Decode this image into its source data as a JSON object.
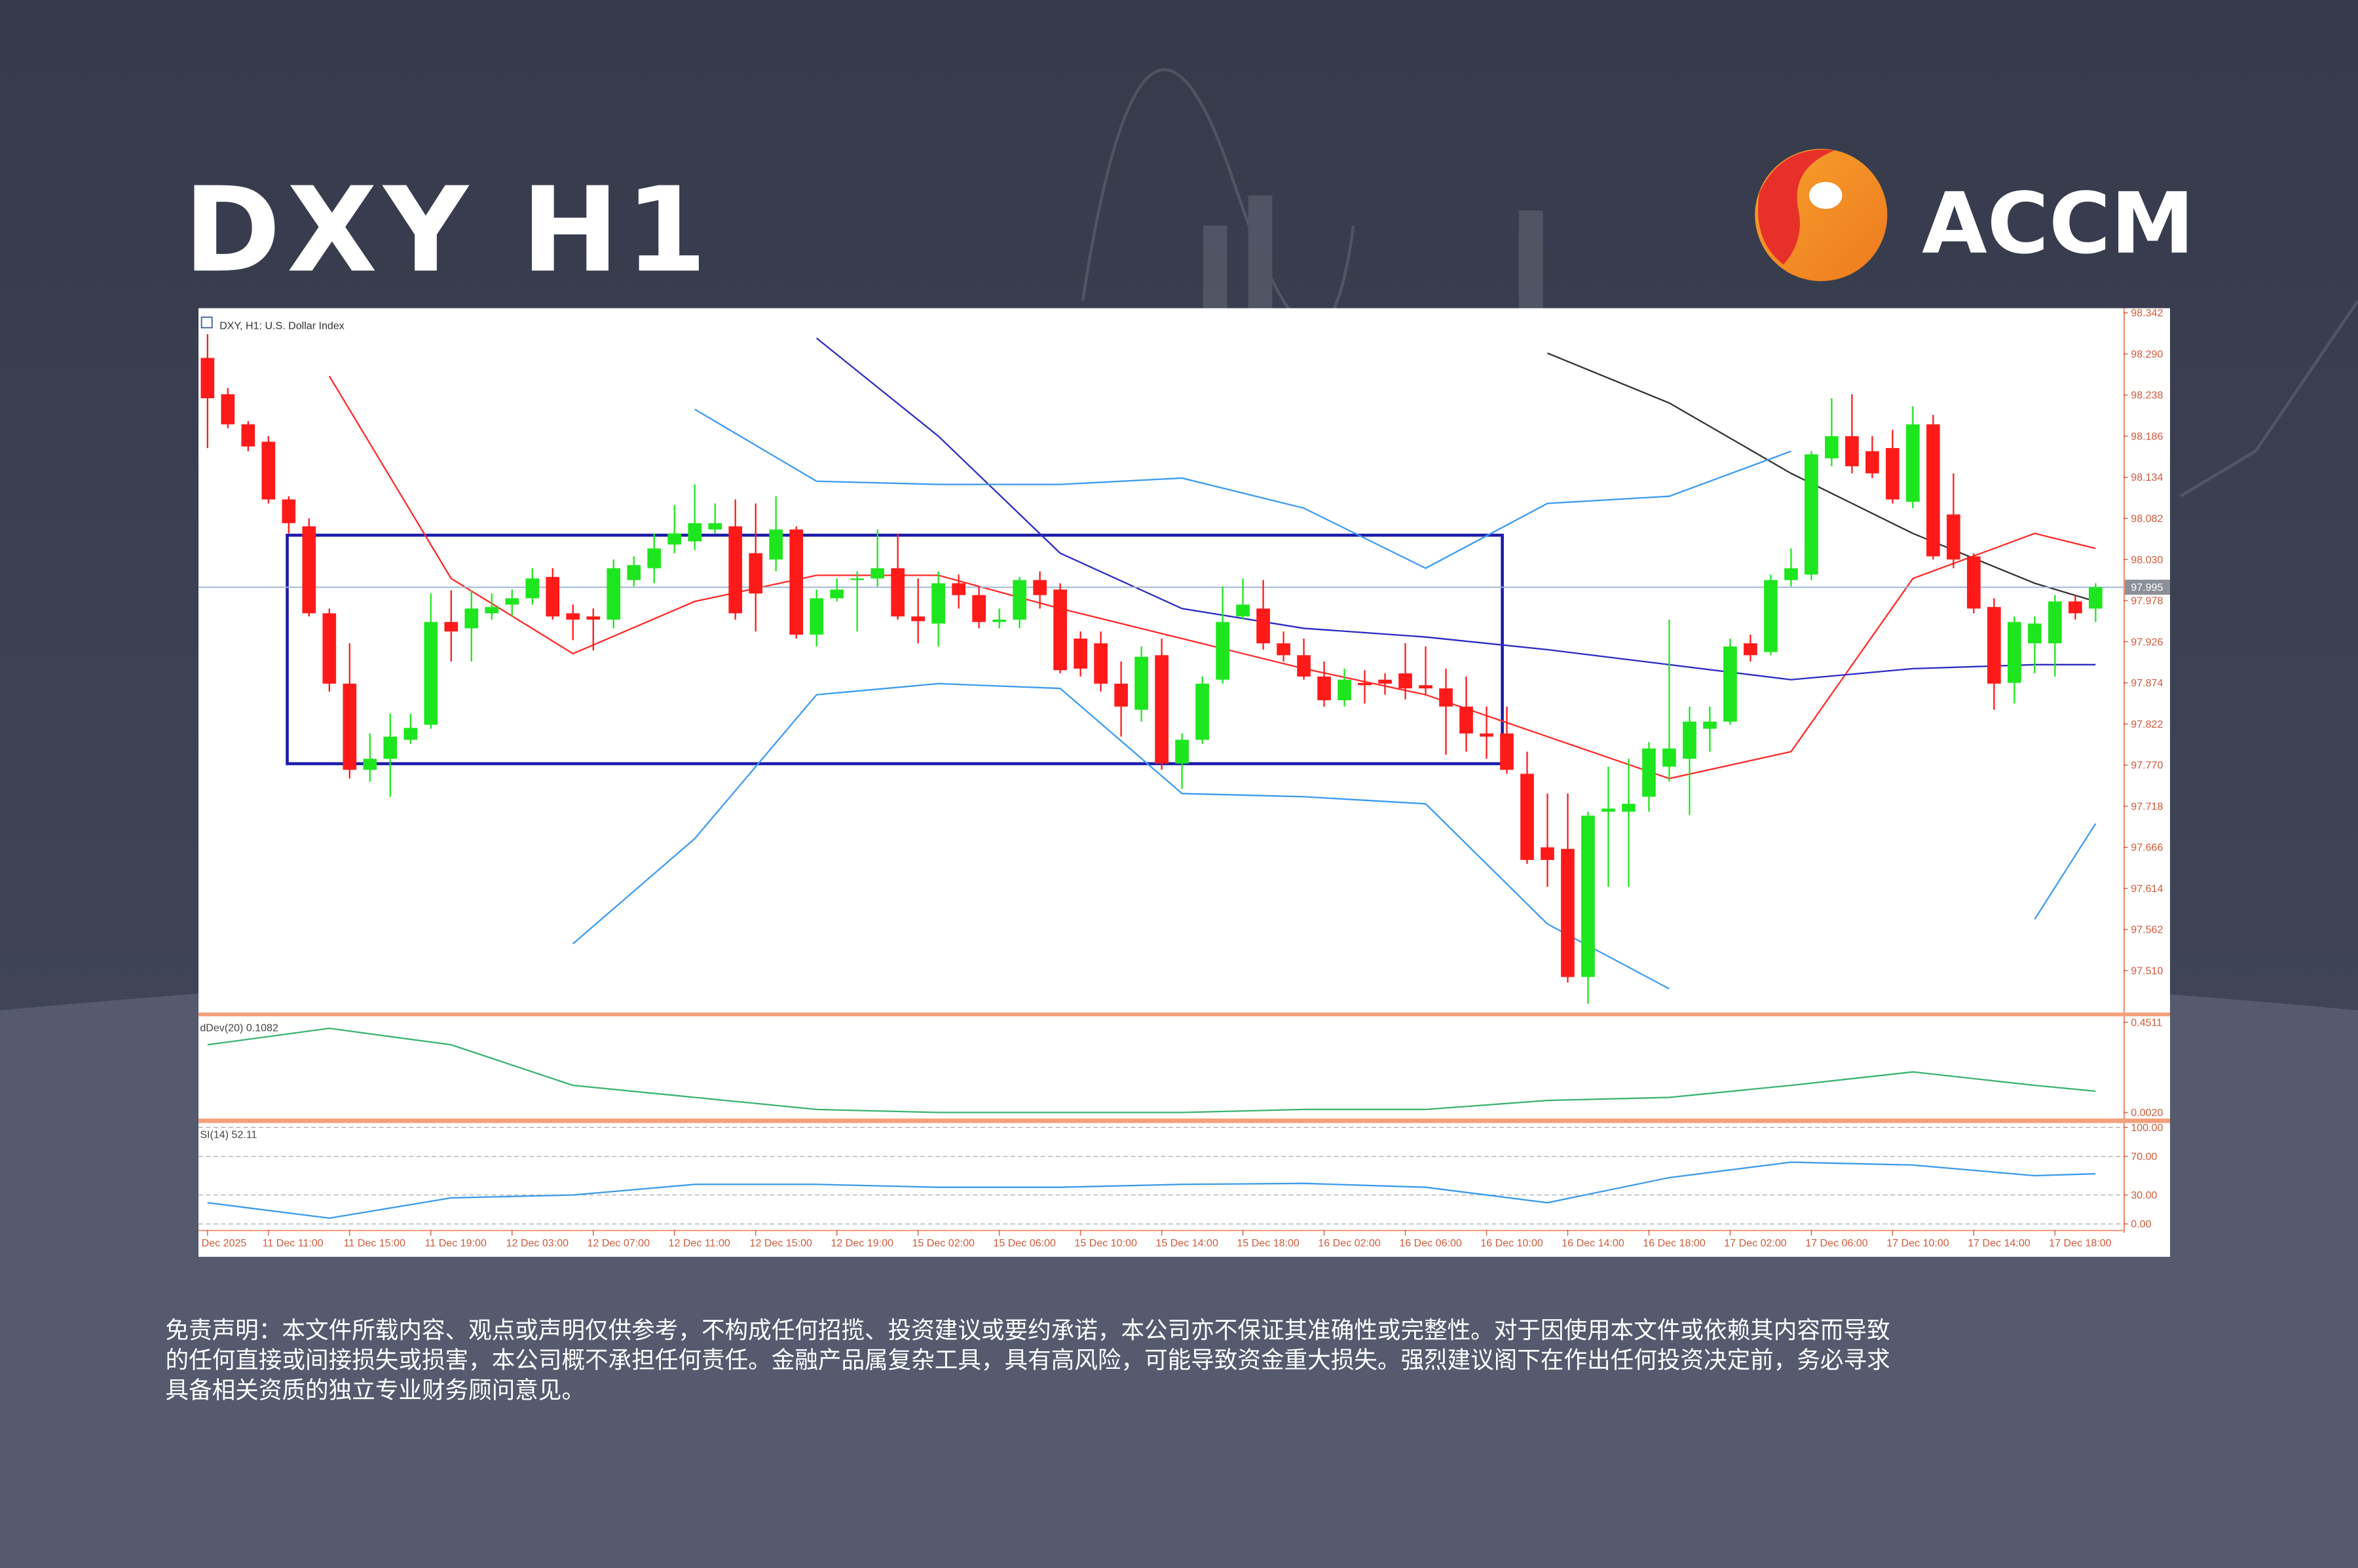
{
  "header": {
    "title": "DXY H1",
    "brand": "ACCM"
  },
  "disclaimer": [
    "免责声明：本文件所载内容、观点或声明仅供参考，不构成任何招揽、投资建议或要约承诺，本公司亦不保证其准确性或完整性。对于因使用本文件或依赖其内容而导致",
    "的任何直接或间接损失或损害，本公司概不承担任何责任。金融产品属复杂工具，具有高风险，可能导致资金重大损失。强烈建议阁下在作出任何投资决定前，务必寻求",
    "具备相关资质的独立专业财务顾问意见。"
  ],
  "chart_data": [
    {
      "type": "candlestick",
      "title": "DXY, H1: U.S. Dollar Index",
      "categories": [
        "Dec 2025",
        null,
        null,
        "11 Dec 11:00",
        null,
        null,
        null,
        "11 Dec 15:00",
        null,
        null,
        null,
        "11 Dec 19:00",
        null,
        null,
        null,
        "12 Dec 03:00",
        null,
        null,
        null,
        "12 Dec 07:00",
        null,
        null,
        null,
        "12 Dec 11:00",
        null,
        null,
        null,
        "12 Dec 15:00",
        null,
        null,
        null,
        "12 Dec 19:00",
        null,
        null,
        null,
        "15 Dec 02:00",
        null,
        null,
        null,
        "15 Dec 06:00",
        null,
        null,
        null,
        "15 Dec 10:00",
        null,
        null,
        null,
        "15 Dec 14:00",
        null,
        null,
        null,
        "15 Dec 18:00",
        null,
        null,
        null,
        "16 Dec 02:00",
        null,
        null,
        null,
        "16 Dec 06:00",
        null,
        null,
        null,
        "16 Dec 10:00",
        null,
        null,
        null,
        "16 Dec 14:00",
        null,
        null,
        null,
        "16 Dec 18:00",
        null,
        null,
        null,
        "17 Dec 02:00",
        null,
        null,
        null,
        "17 Dec 06:00",
        null,
        null,
        null,
        "17 Dec 10:00",
        null,
        null,
        null,
        "17 Dec 14:00",
        null,
        null,
        null,
        "17 Dec 18:00",
        null,
        null
      ],
      "open": [
        98.285,
        98.239,
        98.201,
        98.179,
        98.106,
        98.072,
        97.962,
        97.873,
        97.764,
        97.778,
        97.802,
        97.821,
        97.951,
        97.943,
        97.962,
        97.973,
        97.981,
        98.008,
        97.962,
        97.958,
        97.954,
        98.004,
        98.019,
        98.049,
        98.053,
        98.068,
        98.072,
        98.038,
        98.03,
        98.068,
        97.935,
        97.981,
        98.004,
        98.006,
        98.019,
        97.958,
        97.949,
        98.0,
        97.985,
        97.951,
        97.954,
        98.004,
        97.992,
        97.93,
        97.924,
        97.873,
        97.84,
        97.909,
        97.772,
        97.802,
        97.878,
        97.958,
        97.968,
        97.924,
        97.909,
        97.882,
        97.852,
        97.874,
        97.878,
        97.886,
        97.871,
        97.867,
        97.844,
        97.81,
        97.81,
        97.759,
        97.666,
        97.664,
        97.502,
        97.711,
        97.711,
        97.73,
        97.768,
        97.778,
        97.816,
        97.825,
        97.924,
        97.913,
        98.004,
        98.011,
        98.158,
        98.186,
        98.167,
        98.171,
        98.103,
        98.201,
        98.087,
        98.034,
        97.97,
        97.874,
        97.924,
        97.924,
        97.977,
        97.968
      ],
      "high": [
        98.315,
        98.247,
        98.205,
        98.186,
        98.11,
        98.082,
        97.968,
        97.924,
        97.81,
        97.835,
        97.835,
        97.987,
        97.991,
        97.991,
        97.987,
        97.992,
        98.019,
        98.019,
        97.973,
        97.968,
        98.03,
        98.034,
        98.063,
        98.099,
        98.125,
        98.101,
        98.106,
        98.101,
        98.11,
        98.072,
        97.992,
        98.006,
        98.015,
        98.068,
        98.063,
        98.006,
        98.015,
        98.011,
        97.996,
        97.968,
        98.008,
        98.015,
        98.0,
        97.939,
        97.939,
        97.901,
        97.92,
        97.93,
        97.81,
        97.882,
        97.996,
        98.006,
        98.004,
        97.939,
        97.93,
        97.901,
        97.892,
        97.89,
        97.886,
        97.924,
        97.92,
        97.892,
        97.882,
        97.844,
        97.844,
        97.787,
        97.734,
        97.734,
        97.711,
        97.768,
        97.778,
        97.799,
        97.954,
        97.844,
        97.844,
        97.93,
        97.935,
        98.011,
        98.044,
        98.167,
        98.234,
        98.239,
        98.186,
        98.194,
        98.224,
        98.213,
        98.139,
        98.038,
        97.981,
        97.958,
        97.958,
        97.985,
        97.985,
        98.0
      ],
      "low": [
        98.171,
        98.196,
        98.167,
        98.101,
        98.063,
        97.958,
        97.863,
        97.753,
        97.749,
        97.73,
        97.797,
        97.816,
        97.901,
        97.901,
        97.954,
        97.958,
        97.973,
        97.954,
        97.928,
        97.915,
        97.943,
        97.996,
        98.0,
        98.038,
        98.042,
        98.063,
        97.954,
        97.939,
        98.015,
        97.93,
        97.92,
        97.977,
        97.939,
        97.996,
        97.954,
        97.924,
        97.92,
        97.968,
        97.943,
        97.943,
        97.943,
        97.968,
        97.886,
        97.882,
        97.863,
        97.806,
        97.825,
        97.764,
        97.74,
        97.797,
        97.873,
        97.954,
        97.916,
        97.901,
        97.878,
        97.844,
        97.844,
        97.848,
        97.859,
        97.853,
        97.859,
        97.783,
        97.787,
        97.778,
        97.759,
        97.645,
        97.616,
        97.495,
        97.468,
        97.616,
        97.616,
        97.711,
        97.749,
        97.707,
        97.787,
        97.821,
        97.901,
        97.909,
        97.996,
        98.004,
        98.148,
        98.139,
        98.133,
        98.101,
        98.095,
        98.03,
        98.019,
        97.962,
        97.84,
        97.848,
        97.886,
        97.882,
        97.954,
        97.951
      ],
      "close": [
        98.234,
        98.201,
        98.173,
        98.106,
        98.076,
        97.962,
        97.873,
        97.764,
        97.778,
        97.806,
        97.817,
        97.951,
        97.939,
        97.968,
        97.97,
        97.981,
        98.006,
        97.958,
        97.954,
        97.954,
        98.019,
        98.023,
        98.044,
        98.063,
        98.076,
        98.076,
        97.962,
        97.987,
        98.068,
        97.935,
        97.981,
        97.992,
        98.006,
        98.019,
        97.958,
        97.952,
        98.0,
        97.985,
        97.951,
        97.954,
        98.004,
        97.985,
        97.89,
        97.892,
        97.873,
        97.844,
        97.907,
        97.772,
        97.802,
        97.873,
        97.951,
        97.973,
        97.924,
        97.909,
        97.882,
        97.852,
        97.878,
        97.871,
        97.873,
        97.867,
        97.867,
        97.844,
        97.81,
        97.806,
        97.764,
        97.65,
        97.65,
        97.502,
        97.706,
        97.715,
        97.721,
        97.791,
        97.791,
        97.825,
        97.825,
        97.92,
        97.909,
        98.004,
        98.019,
        98.163,
        98.186,
        98.148,
        98.139,
        98.106,
        98.201,
        98.034,
        98.03,
        97.968,
        97.873,
        97.951,
        97.949,
        97.977,
        97.962,
        97.995
      ],
      "up_color": "#1ee61e",
      "down_color": "#ff1a1a",
      "ylim": [
        97.458,
        98.346
      ],
      "yticks": [
        98.342,
        {
          "value": 98.29,
          "label": "98.290"
        },
        98.238,
        98.186,
        98.134,
        98.082,
        {
          "value": 98.03,
          "label": "98.030"
        },
        97.978,
        97.926,
        97.874,
        97.822,
        {
          "value": 97.77,
          "label": "97.770"
        },
        97.718,
        97.666,
        97.614,
        97.562,
        {
          "value": 97.51,
          "label": "97.510"
        }
      ],
      "current_price": 97.995,
      "overlays": [
        {
          "color": "#ff2a2a",
          "x": [
            0,
            6,
            12,
            18,
            24,
            30,
            36,
            42,
            48,
            54,
            60,
            66,
            72,
            78,
            84,
            90,
            93
          ],
          "values": [
            null,
            98.262,
            98.006,
            97.911,
            97.977,
            98.01,
            98.01,
            97.968,
            97.93,
            97.892,
            97.859,
            97.806,
            97.753,
            97.787,
            98.006,
            98.063,
            98.044
          ]
        },
        {
          "color": "#2b2bc4",
          "x": [
            0,
            6,
            12,
            18,
            24,
            30,
            36,
            42,
            48,
            54,
            60,
            66,
            72,
            78,
            84,
            90,
            93
          ],
          "values": [
            null,
            null,
            null,
            null,
            null,
            98.31,
            98.186,
            98.038,
            97.968,
            97.943,
            97.932,
            97.916,
            97.897,
            97.878,
            97.892,
            97.897,
            97.897
          ]
        },
        {
          "color": "#333333",
          "x": [
            0,
            6,
            12,
            18,
            24,
            30,
            36,
            42,
            48,
            54,
            60,
            66,
            72,
            78,
            84,
            90,
            93
          ],
          "values": [
            null,
            null,
            null,
            null,
            null,
            null,
            null,
            null,
            null,
            null,
            null,
            98.291,
            98.228,
            98.139,
            98.063,
            98.0,
            97.977
          ]
        },
        {
          "color": "#3d9bf0",
          "x": [
            0,
            6,
            12,
            18,
            24,
            30,
            36,
            42,
            48,
            54,
            60,
            66,
            72,
            78,
            84,
            90,
            93
          ],
          "values": [
            null,
            null,
            null,
            null,
            98.22,
            98.129,
            98.125,
            98.125,
            98.133,
            98.095,
            98.019,
            98.101,
            98.11,
            98.167,
            null,
            null,
            null
          ]
        },
        {
          "color": "#3d9bf0",
          "x": [
            0,
            6,
            12,
            18,
            24,
            30,
            36,
            42,
            48,
            54,
            60,
            66,
            72,
            78,
            84,
            90,
            93
          ],
          "values": [
            null,
            null,
            null,
            97.544,
            97.677,
            97.859,
            97.873,
            97.867,
            97.734,
            97.73,
            97.721,
            97.569,
            97.487,
            null,
            null,
            97.575,
            97.696
          ]
        }
      ]
    },
    {
      "type": "line",
      "title": "dDev(20) 0.1082",
      "x": [
        0,
        6,
        12,
        18,
        24,
        30,
        36,
        42,
        48,
        54,
        60,
        66,
        72,
        78,
        84,
        90,
        93
      ],
      "series": [
        {
          "color": "#3cb371",
          "values": [
            0.339,
            0.421,
            0.339,
            0.137,
            0.077,
            0.017,
            0.002,
            0.002,
            0.002,
            0.017,
            0.017,
            0.062,
            0.077,
            0.137,
            0.204,
            0.137,
            0.108
          ]
        }
      ],
      "ylim": [
        -0.028,
        0.481
      ],
      "yticks": [
        0.4511,
        {
          "value": 0.002,
          "label": "0.0020"
        }
      ]
    },
    {
      "type": "line",
      "title": "SI(14) 52.11",
      "x": [
        0,
        6,
        12,
        18,
        24,
        30,
        36,
        42,
        48,
        54,
        60,
        66,
        72,
        78,
        84,
        90,
        93
      ],
      "series": [
        {
          "color": "#3d9be9",
          "values": [
            22,
            6,
            27,
            30,
            41,
            41,
            38,
            38,
            41,
            42,
            38,
            22,
            48,
            64,
            61,
            50,
            52
          ]
        }
      ],
      "ylim": [
        -6,
        103
      ],
      "yticks": [
        {
          "value": 100,
          "label": "100.00"
        },
        {
          "value": 70,
          "label": "70.00"
        },
        {
          "value": 30,
          "label": "30.00"
        },
        {
          "value": 0,
          "label": "0.00"
        }
      ],
      "grid": true
    }
  ]
}
